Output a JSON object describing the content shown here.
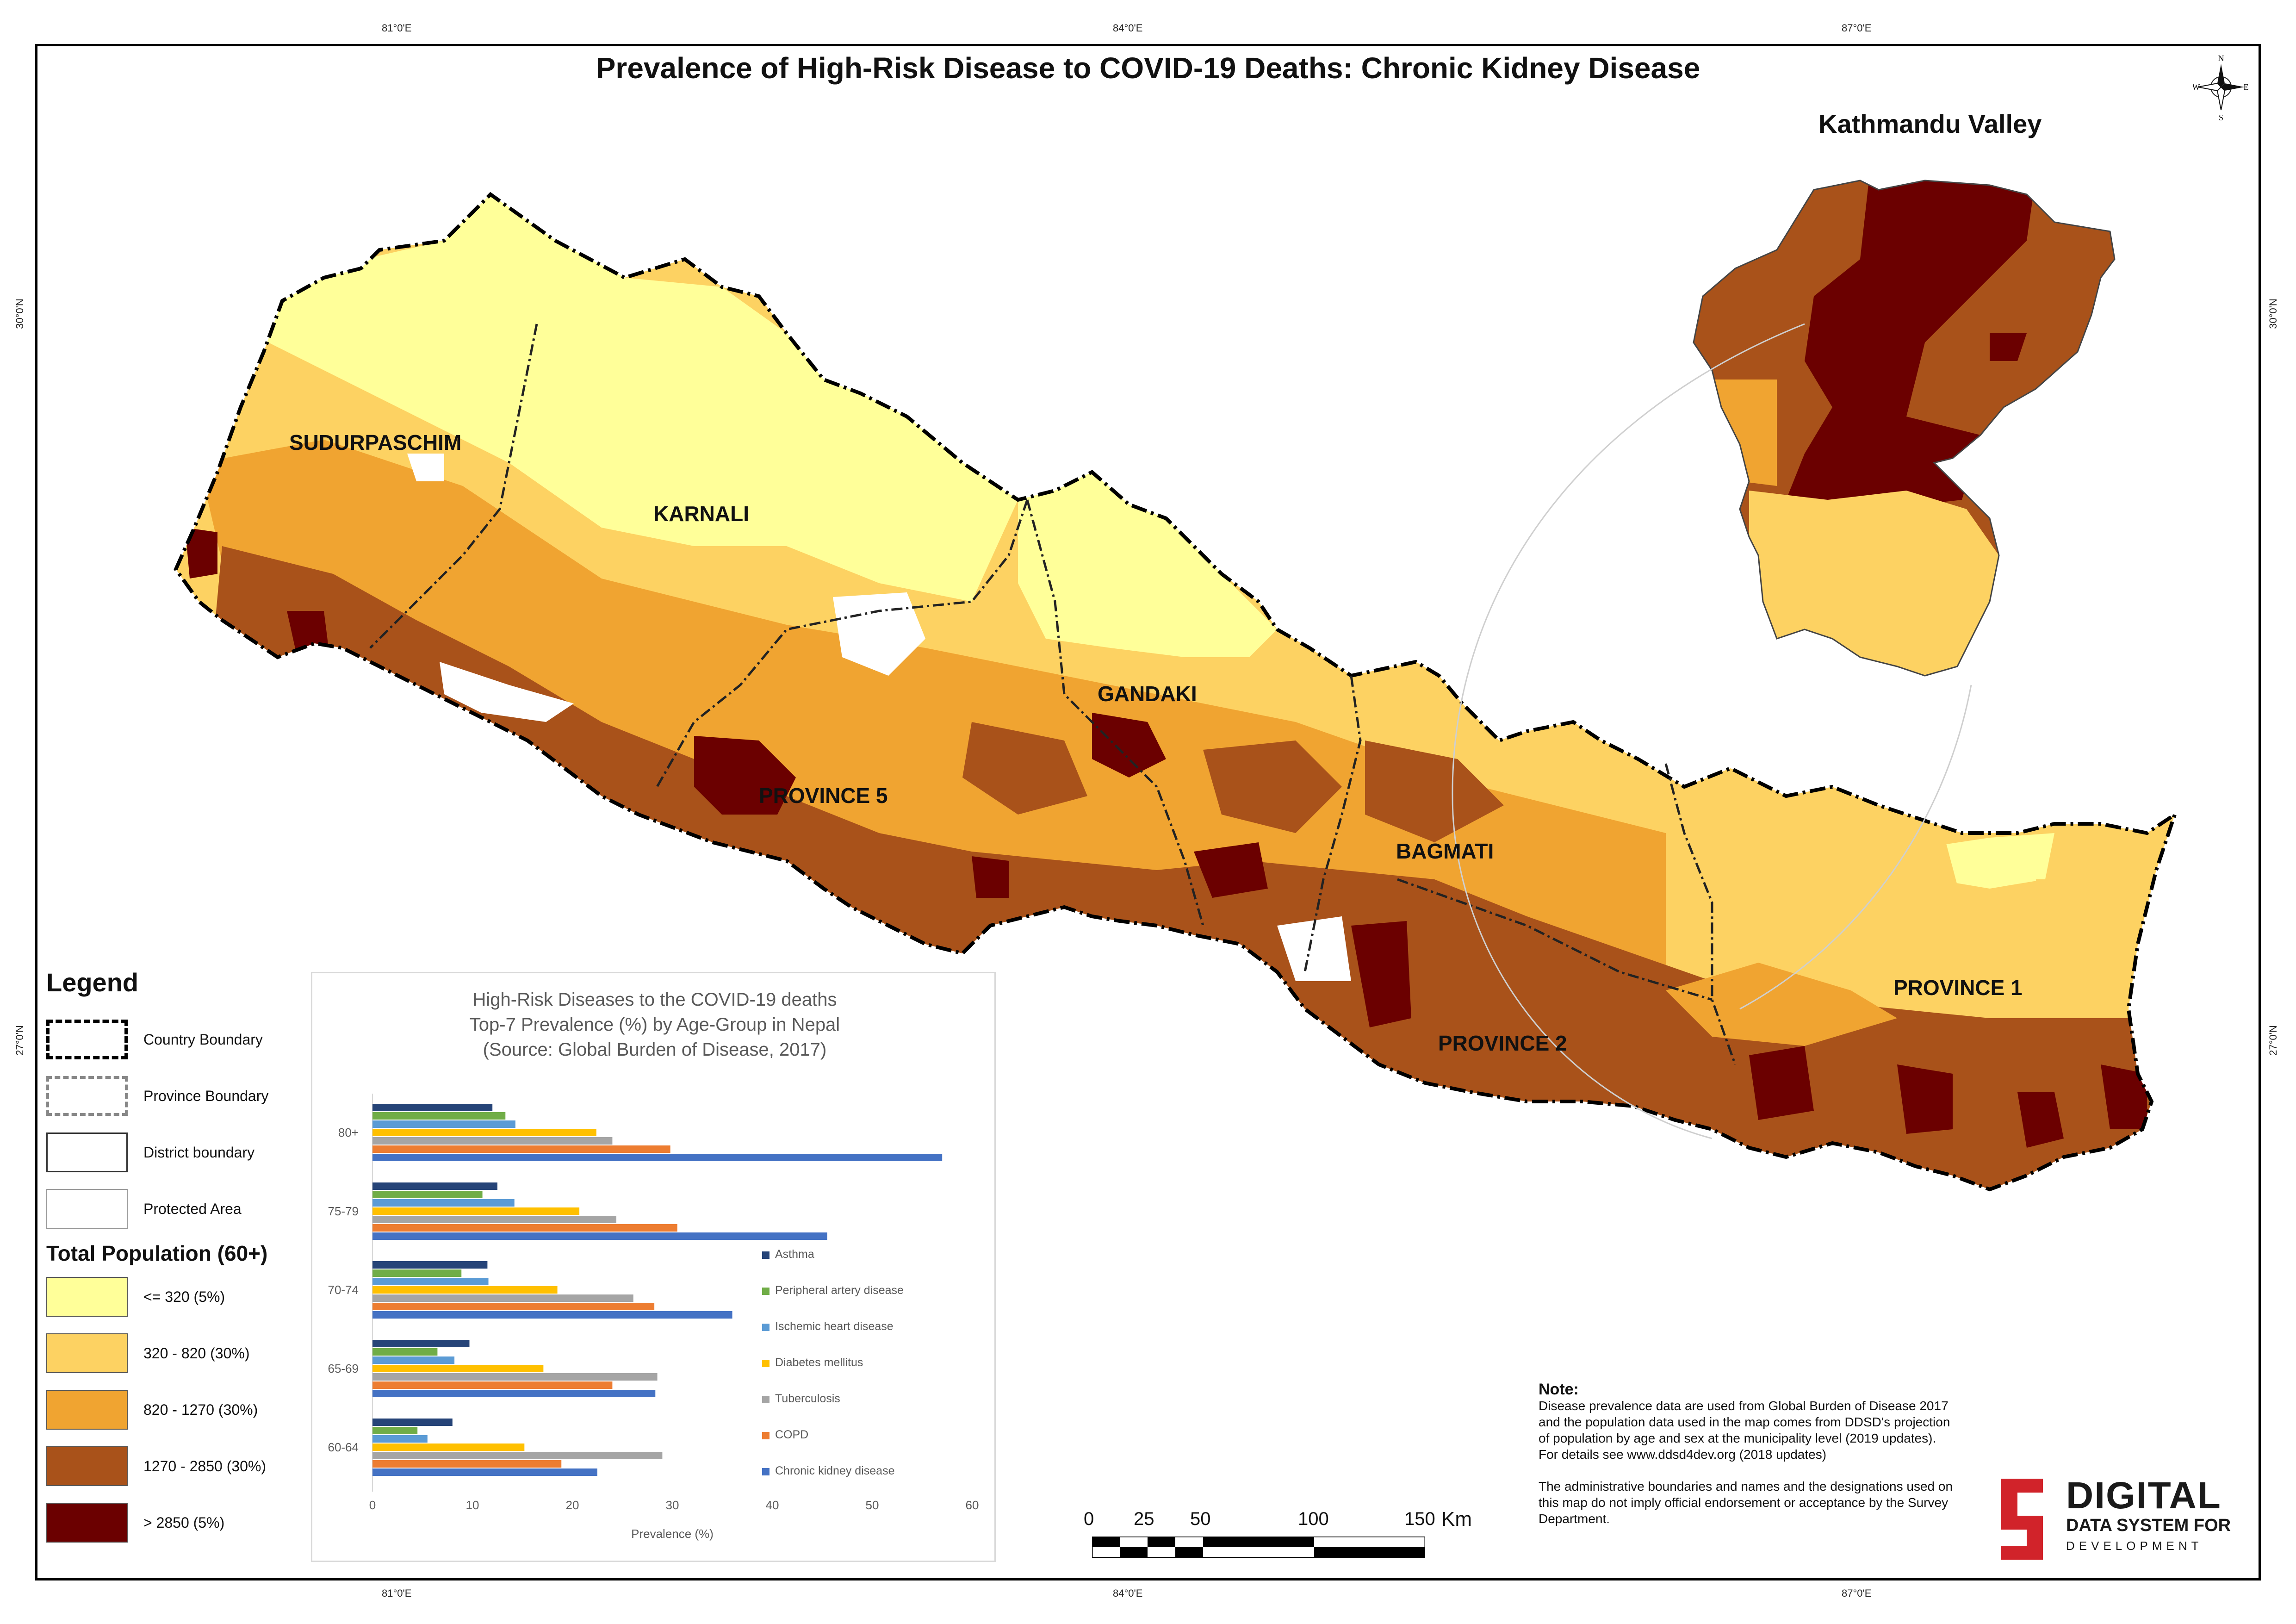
{
  "title": "Prevalence of High-Risk Disease to COVID-19 Deaths: Chronic Kidney Disease",
  "inset_title": "Kathmandu Valley",
  "coordinates": {
    "top": [
      "81°0'E",
      "84°0'E",
      "87°0'E"
    ],
    "bottom": [
      "81°0'E",
      "84°0'E",
      "87°0'E"
    ],
    "left": [
      "30°0'N",
      "27°0'N"
    ],
    "right": [
      "30°0'N",
      "27°0'N"
    ]
  },
  "compass": {
    "n": "N",
    "s": "S",
    "e": "E",
    "w": "W"
  },
  "province_labels": [
    "SUDURPASCHIM",
    "KARNALI",
    "GANDAKI",
    "PROVINCE 5",
    "BAGMATI",
    "PROVINCE 2",
    "PROVINCE 1"
  ],
  "legend": {
    "title": "Legend",
    "boundaries": [
      {
        "label": "Country Boundary",
        "style": "dash-dot-black"
      },
      {
        "label": "Province Boundary",
        "style": "dash-dot-gray"
      },
      {
        "label": "District boundary",
        "style": "solid-thin"
      },
      {
        "label": "Protected Area",
        "style": "solid-thin"
      }
    ],
    "population_title": "Total Population (60+)",
    "classes": [
      {
        "label": "<= 320 (5%)",
        "color": "#ffff99"
      },
      {
        "label": "320 - 820 (30%)",
        "color": "#fdd262"
      },
      {
        "label": "820 - 1270 (30%)",
        "color": "#f0a431"
      },
      {
        "label": "1270 - 2850 (30%)",
        "color": "#a9521a"
      },
      {
        "label": "> 2850 (5%)",
        "color": "#6b0000"
      }
    ]
  },
  "chart_data": {
    "type": "bar",
    "orientation": "horizontal",
    "title_lines": [
      "High-Risk Diseases to the COVID-19 deaths",
      "Top-7 Prevalence (%) by Age-Group in Nepal",
      "(Source: Global Burden of Disease, 2017)"
    ],
    "xlabel": "Prevalence (%)",
    "xlim": [
      0,
      60
    ],
    "xticks": [
      0,
      10,
      20,
      30,
      40,
      50,
      60
    ],
    "categories": [
      "80+",
      "75-79",
      "70-74",
      "65-69",
      "60-64"
    ],
    "series": [
      {
        "name": "Asthma",
        "color": "#264478",
        "values": [
          12,
          12.5,
          11.5,
          9.7,
          8
        ]
      },
      {
        "name": "Peripheral artery disease",
        "color": "#70ad47",
        "values": [
          13.3,
          11,
          8.9,
          6.5,
          4.5
        ]
      },
      {
        "name": "Ischemic heart disease",
        "color": "#5b9bd5",
        "values": [
          14.3,
          14.2,
          11.6,
          8.2,
          5.5
        ]
      },
      {
        "name": "Diabetes mellitus",
        "color": "#ffc000",
        "values": [
          22.4,
          20.7,
          18.5,
          17.1,
          15.2
        ]
      },
      {
        "name": "Tuberculosis",
        "color": "#a5a5a5",
        "values": [
          24,
          24.4,
          26.1,
          28.5,
          29
        ]
      },
      {
        "name": "COPD",
        "color": "#ed7d31",
        "values": [
          29.8,
          30.5,
          28.2,
          24,
          18.9
        ]
      },
      {
        "name": "Chronic kidney disease",
        "color": "#4472c4",
        "values": [
          57,
          45.5,
          36,
          28.3,
          22.5
        ]
      }
    ]
  },
  "scale_bar": {
    "ticks": [
      "0",
      "25",
      "50",
      "100",
      "150"
    ],
    "unit": "Km"
  },
  "note": {
    "heading": "Note:",
    "paragraph1": "Disease prevalence data are used from Global Burden of Disease 2017 and the population data used in the map comes from DDSD's projection of population by age and sex at the municipality level (2019 updates). For details see www.ddsd4dev.org (2018 updates)",
    "paragraph2": "The administrative boundaries and names and the designations used on this map do not imply official endorsement or acceptance by the Survey Department."
  },
  "logo": {
    "main": "DIGITAL",
    "sub1": "DATA SYSTEM FOR",
    "sub2": "DEVELOPMENT"
  }
}
